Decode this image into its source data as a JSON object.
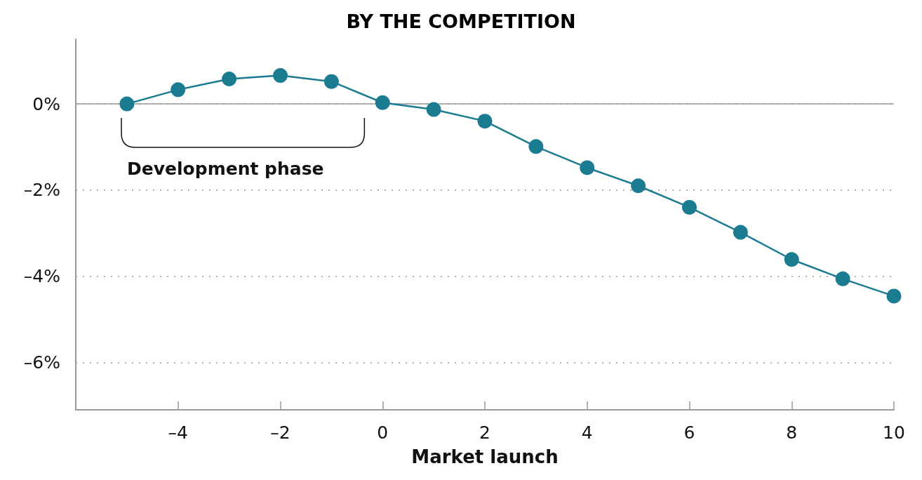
{
  "chart_data": {
    "type": "line",
    "title": "BY THE COMPETITION",
    "xlabel": "Market launch",
    "annotations": [
      "Development phase"
    ],
    "x": [
      -5,
      -4,
      -3,
      -2,
      -1,
      0,
      1,
      2,
      3,
      4,
      5,
      6,
      7,
      8,
      9,
      10
    ],
    "series": [
      {
        "color": "#1b7b91",
        "values": [
          0,
          0.33,
          0.58,
          0.66,
          0.52,
          0.03,
          -0.13,
          -0.4,
          -0.99,
          -1.48,
          -1.9,
          -2.4,
          -2.98,
          -3.61,
          -4.06,
          -4.46
        ]
      }
    ],
    "xlim": [
      -6,
      10
    ],
    "xticks": [
      {
        "value": -4,
        "label": "–4"
      },
      {
        "value": -2,
        "label": "–2"
      },
      0,
      2,
      4,
      6,
      8,
      10
    ],
    "ylim": [
      -7.1,
      1.5
    ],
    "yticks": [
      {
        "value": 0,
        "label": "0%"
      },
      {
        "value": -2,
        "label": "–2%"
      },
      {
        "value": -4,
        "label": "–4%"
      },
      {
        "value": -6,
        "label": "–6%"
      }
    ],
    "ref_lines": [
      {
        "axis": "y",
        "value": 0,
        "color": "#999999",
        "line_style": "solid"
      }
    ],
    "grid": "y",
    "marker": "circle",
    "line_style": "solid"
  }
}
